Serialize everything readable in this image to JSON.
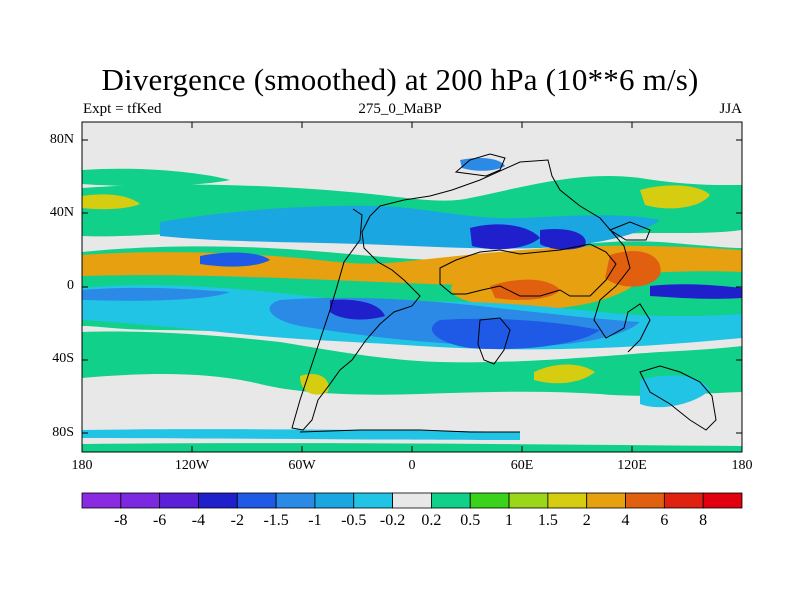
{
  "title": "Divergence (smoothed) at 200 hPa (10**6 m/s)",
  "left_label": "Expt = tfKed",
  "center_label": "275_0_MaBP",
  "right_label": "JJA",
  "y_ticks": [
    "80N",
    "40N",
    "0",
    "40S",
    "80S"
  ],
  "x_ticks": [
    "180",
    "120W",
    "60W",
    "0",
    "60E",
    "120E",
    "180"
  ],
  "colorbar": {
    "colors": [
      "#8a2be2",
      "#7b28e0",
      "#5a1fd6",
      "#1f1fcc",
      "#1e5ae6",
      "#2a8ae6",
      "#1aa6e0",
      "#22c4e6",
      "#e8e8e8",
      "#10d08a",
      "#3ad21a",
      "#9ad61a",
      "#d6cc10",
      "#e6a010",
      "#e06010",
      "#e02010",
      "#e00010"
    ],
    "labels": [
      "-8",
      "-6",
      "-4",
      "-2",
      "-1.5",
      "-1",
      "-0.5",
      "-0.2",
      "0.2",
      "0.5",
      "1",
      "1.5",
      "2",
      "4",
      "6",
      "8"
    ]
  }
}
